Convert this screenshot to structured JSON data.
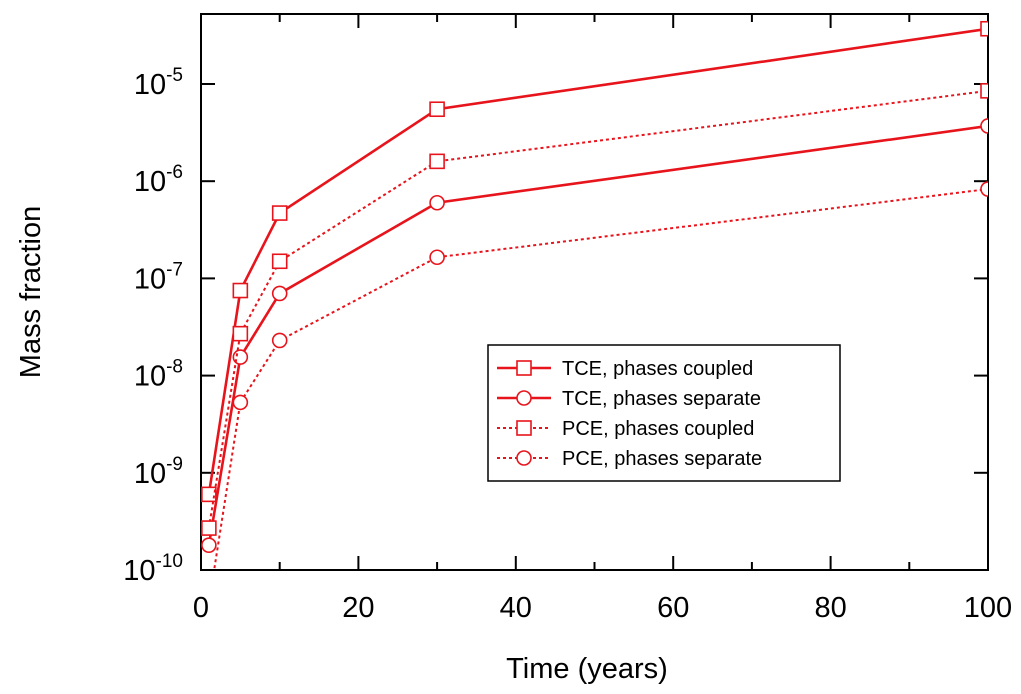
{
  "chart_data": {
    "type": "line",
    "xlabel": "Time (years)",
    "ylabel": "Mass fraction",
    "xlim": [
      0,
      100
    ],
    "ylim": [
      1e-10,
      0.0001
    ],
    "yscale": "log",
    "grid": false,
    "legend_position": "lower-right",
    "x_ticks": [
      {
        "value": 0,
        "label": "0"
      },
      {
        "value": 20,
        "label": "20"
      },
      {
        "value": 40,
        "label": "40"
      },
      {
        "value": 60,
        "label": "60"
      },
      {
        "value": 80,
        "label": "80"
      },
      {
        "value": 100,
        "label": "100"
      }
    ],
    "y_ticks": [
      {
        "value": 1e-10,
        "base": "10",
        "exp": "-10"
      },
      {
        "value": 1e-09,
        "base": "10",
        "exp": "-9"
      },
      {
        "value": 1e-08,
        "base": "10",
        "exp": "-8"
      },
      {
        "value": 1e-07,
        "base": "10",
        "exp": "-7"
      },
      {
        "value": 1e-06,
        "base": "10",
        "exp": "-6"
      },
      {
        "value": 1e-05,
        "base": "10",
        "exp": "-5"
      }
    ],
    "x": [
      1,
      5,
      10,
      30,
      100
    ],
    "series": [
      {
        "name": "TCE, phases coupled",
        "marker": "square",
        "dash": "solid",
        "color": "#e8141c",
        "values": [
          6e-10,
          7.5e-08,
          4.7e-07,
          5.5e-06,
          3.7e-05
        ]
      },
      {
        "name": "TCE, phases separate",
        "marker": "circle",
        "dash": "solid",
        "color": "#e8141c",
        "values": [
          1.8e-10,
          1.55e-08,
          7e-08,
          6e-07,
          3.7e-06
        ]
      },
      {
        "name": "PCE, phases coupled",
        "marker": "square",
        "dash": "dotted",
        "color": "#e8141c",
        "values": [
          2.7e-10,
          2.7e-08,
          1.5e-07,
          1.6e-06,
          8.5e-06
        ]
      },
      {
        "name": "PCE, phases separate",
        "marker": "circle",
        "dash": "dotted",
        "color": "#e8141c",
        "values": [
          4.5e-11,
          5.3e-09,
          2.3e-08,
          1.65e-07,
          8.3e-07
        ]
      }
    ]
  }
}
